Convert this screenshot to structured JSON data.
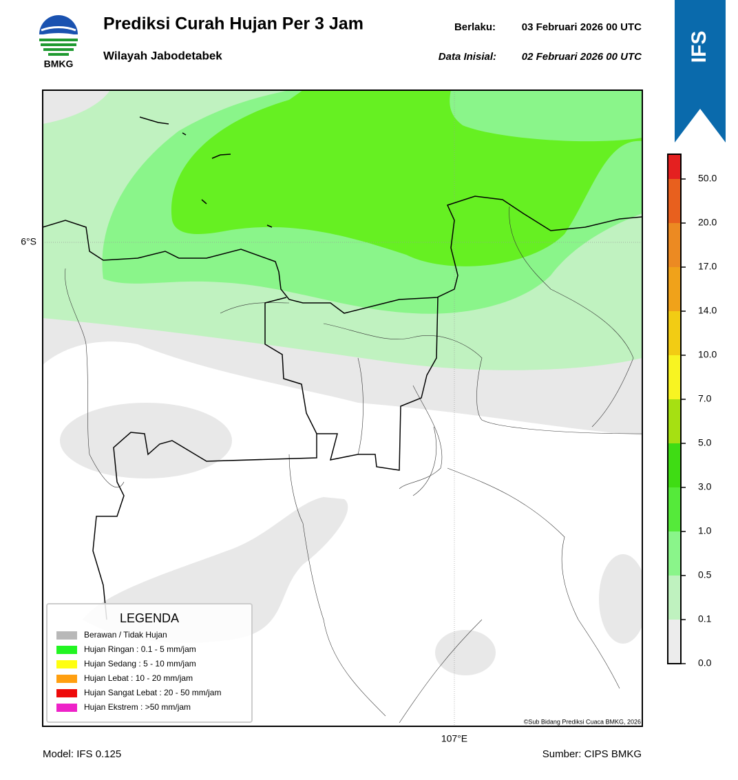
{
  "header": {
    "logo_text": "BMKG",
    "title": "Prediksi Curah Hujan Per 3 Jam",
    "subtitle": "Wilayah Jabodetabek",
    "valid_label": "Berlaku:",
    "valid_time": "03 Februari 2026 00 UTC",
    "init_label": "Data Inisial:",
    "init_time": "02 Februari 2026 00 UTC",
    "badge": "IFS"
  },
  "map": {
    "lat_label": "6°S",
    "lon_label": "107°E",
    "credit": "©Sub Bidang Prediksi Cuaca BMKG, 2026"
  },
  "legend": {
    "title": "LEGENDA",
    "items": [
      {
        "label": "Berawan / Tidak Hujan",
        "color": "#b8b8b8"
      },
      {
        "label": "Hujan Ringan : 0.1 - 5 mm/jam",
        "color": "#22f522"
      },
      {
        "label": "Hujan Sedang : 5 - 10 mm/jam",
        "color": "#ffff10"
      },
      {
        "label": "Hujan Lebat : 10 - 20 mm/jam",
        "color": "#ff9f10"
      },
      {
        "label": "Hujan Sangat Lebat : 20 - 50 mm/jam",
        "color": "#ee0a0a"
      },
      {
        "label": "Hujan Ekstrem : >50 mm/jam",
        "color": "#ee22c8"
      }
    ]
  },
  "colorbar": {
    "ticks": [
      "0.0",
      "0.1",
      "0.5",
      "1.0",
      "3.0",
      "5.0",
      "7.0",
      "10.0",
      "14.0",
      "17.0",
      "20.0",
      "50.0"
    ],
    "colors": [
      "#ececec",
      "#bff2bf",
      "#8af58a",
      "#55ea3a",
      "#3fdc14",
      "#a6e012",
      "#f8f422",
      "#f2cc14",
      "#f0a21a",
      "#ec8a22",
      "#e8601e",
      "#e42020",
      "#e21ec8"
    ]
  },
  "footer": {
    "model": "Model: IFS 0.125",
    "source": "Sumber: CIPS BMKG"
  }
}
